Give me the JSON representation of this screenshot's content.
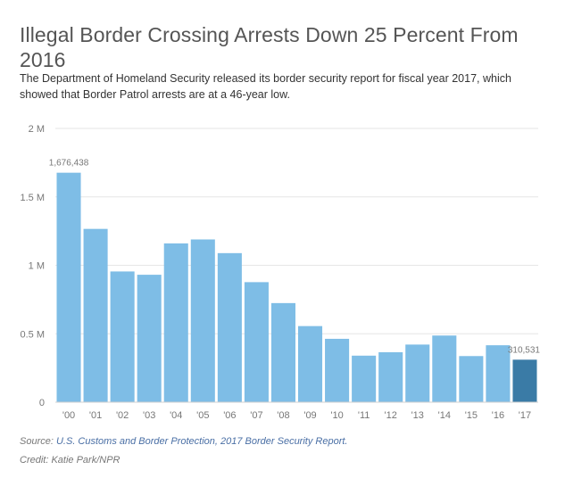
{
  "title": "Illegal Border Crossing Arrests Down 25 Percent From 2016",
  "subtitle": "The Department of Homeland Security released its border security report for fiscal year 2017, which showed that Border Patrol arrests are at a 46-year low.",
  "source": {
    "label": "Source:",
    "link_text": "U.S. Customs and Border Protection, 2017 Border Security Report."
  },
  "credit": "Credit: Katie Park/NPR",
  "colors": {
    "bar": "#7ebde6",
    "highlight_bar": "#3a7ba6",
    "grid": "#e6e6e6",
    "axis_text": "#777777"
  },
  "chart_data": {
    "type": "bar",
    "title": "Illegal Border Crossing Arrests Down 25 Percent From 2016",
    "xlabel": "",
    "ylabel": "",
    "ylim": [
      0,
      2000000
    ],
    "yticks": [
      0,
      500000,
      1000000,
      1500000,
      2000000
    ],
    "ytick_labels": [
      "0",
      "0.5 M",
      "1 M",
      "1.5 M",
      "2 M"
    ],
    "categories": [
      "'00",
      "'01",
      "'02",
      "'03",
      "'04",
      "'05",
      "'06",
      "'07",
      "'08",
      "'09",
      "'10",
      "'11",
      "'12",
      "'13",
      "'14",
      "'15",
      "'16",
      "'17"
    ],
    "values": [
      1676438,
      1266000,
      955000,
      931000,
      1160000,
      1189000,
      1089000,
      877000,
      724000,
      556000,
      463000,
      340000,
      365000,
      421000,
      487000,
      337000,
      416000,
      310531
    ],
    "highlight_index": 17,
    "data_labels": [
      {
        "index": 0,
        "text": "1,676,438"
      },
      {
        "index": 17,
        "text": "310,531"
      }
    ],
    "grid": true
  }
}
